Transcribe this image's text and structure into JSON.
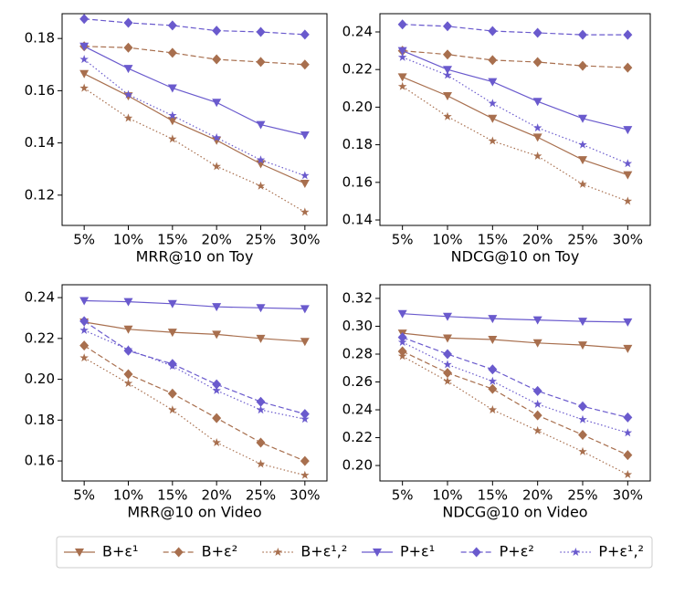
{
  "chart_data": [
    {
      "type": "line",
      "xlabel": "MRR@10 on Toy",
      "categories": [
        "5%",
        "10%",
        "15%",
        "20%",
        "25%",
        "30%"
      ],
      "ylim": [
        0.1084,
        0.1895
      ],
      "yticks": [
        0.12,
        0.14,
        0.16,
        0.18
      ],
      "series": [
        {
          "name": "B+ε¹",
          "color": "#a86f4e",
          "linestyle": "solid",
          "marker": "triangle-down",
          "values": [
            0.1665,
            0.158,
            0.1485,
            0.141,
            0.132,
            0.1245
          ]
        },
        {
          "name": "B+ε²",
          "color": "#a86f4e",
          "linestyle": "dashed",
          "marker": "diamond",
          "values": [
            0.177,
            0.1765,
            0.1745,
            0.172,
            0.171,
            0.17
          ]
        },
        {
          "name": "B+ε¹,²",
          "color": "#a86f4e",
          "linestyle": "dotted",
          "marker": "star",
          "values": [
            0.161,
            0.1495,
            0.1415,
            0.131,
            0.1235,
            0.1135
          ]
        },
        {
          "name": "P+ε¹",
          "color": "#6a5acd",
          "linestyle": "solid",
          "marker": "triangle-down",
          "values": [
            0.177,
            0.1685,
            0.161,
            0.1555,
            0.147,
            0.143
          ]
        },
        {
          "name": "P+ε²",
          "color": "#6a5acd",
          "linestyle": "dashed",
          "marker": "diamond",
          "values": [
            0.1875,
            0.186,
            0.185,
            0.183,
            0.1825,
            0.1815
          ]
        },
        {
          "name": "P+ε¹,²",
          "color": "#6a5acd",
          "linestyle": "dotted",
          "marker": "star",
          "values": [
            0.172,
            0.1585,
            0.1505,
            0.142,
            0.1335,
            0.1275
          ]
        }
      ]
    },
    {
      "type": "line",
      "xlabel": "NDCG@10 on Toy",
      "categories": [
        "5%",
        "10%",
        "15%",
        "20%",
        "25%",
        "30%"
      ],
      "ylim": [
        0.1371,
        0.2497
      ],
      "yticks": [
        0.14,
        0.16,
        0.18,
        {
          "value": 0.2,
          "label": "0.20"
        },
        0.22,
        0.24
      ],
      "series": [
        {
          "name": "B+ε¹",
          "color": "#a86f4e",
          "linestyle": "solid",
          "marker": "triangle-down",
          "values": [
            0.216,
            0.206,
            0.194,
            0.184,
            0.172,
            0.164
          ]
        },
        {
          "name": "B+ε²",
          "color": "#a86f4e",
          "linestyle": "dashed",
          "marker": "diamond",
          "values": [
            0.23,
            0.228,
            0.225,
            0.224,
            0.222,
            0.221
          ]
        },
        {
          "name": "B+ε¹,²",
          "color": "#a86f4e",
          "linestyle": "dotted",
          "marker": "star",
          "values": [
            0.211,
            0.195,
            0.182,
            0.174,
            0.159,
            0.15
          ]
        },
        {
          "name": "P+ε¹",
          "color": "#6a5acd",
          "linestyle": "solid",
          "marker": "triangle-down",
          "values": [
            0.23,
            0.22,
            0.2135,
            0.203,
            0.194,
            0.188
          ]
        },
        {
          "name": "P+ε²",
          "color": "#6a5acd",
          "linestyle": "dashed",
          "marker": "diamond",
          "values": [
            0.244,
            0.243,
            0.2405,
            0.2395,
            0.2385,
            0.2385
          ]
        },
        {
          "name": "P+ε¹,²",
          "color": "#6a5acd",
          "linestyle": "dotted",
          "marker": "star",
          "values": [
            0.2265,
            0.217,
            0.202,
            0.189,
            0.18,
            0.17
          ]
        }
      ]
    },
    {
      "type": "line",
      "xlabel": "MRR@10 on Video",
      "categories": [
        "5%",
        "10%",
        "15%",
        "20%",
        "25%",
        "30%"
      ],
      "ylim": [
        0.1502,
        0.2463
      ],
      "yticks": [
        0.16,
        0.18,
        {
          "value": 0.2,
          "label": "0.20"
        },
        0.22,
        0.24
      ],
      "series": [
        {
          "name": "B+ε¹",
          "color": "#a86f4e",
          "linestyle": "solid",
          "marker": "triangle-down",
          "values": [
            0.228,
            0.2245,
            0.223,
            0.222,
            0.22,
            0.2185
          ]
        },
        {
          "name": "B+ε²",
          "color": "#a86f4e",
          "linestyle": "dashed",
          "marker": "diamond",
          "values": [
            0.2165,
            0.2025,
            0.193,
            0.181,
            0.169,
            0.16
          ]
        },
        {
          "name": "B+ε¹,²",
          "color": "#a86f4e",
          "linestyle": "dotted",
          "marker": "star",
          "values": [
            0.2105,
            0.198,
            0.185,
            0.169,
            0.1585,
            0.153
          ]
        },
        {
          "name": "P+ε¹",
          "color": "#6a5acd",
          "linestyle": "solid",
          "marker": "triangle-down",
          "values": [
            0.2385,
            0.238,
            0.237,
            0.2355,
            0.235,
            0.2345
          ]
        },
        {
          "name": "P+ε²",
          "color": "#6a5acd",
          "linestyle": "dashed",
          "marker": "diamond",
          "values": [
            0.2285,
            0.214,
            0.2075,
            0.1975,
            0.189,
            0.183
          ]
        },
        {
          "name": "P+ε¹,²",
          "color": "#6a5acd",
          "linestyle": "dotted",
          "marker": "star",
          "values": [
            0.224,
            0.2145,
            0.2065,
            0.1945,
            0.185,
            0.1805
          ]
        }
      ]
    },
    {
      "type": "line",
      "xlabel": "NDCG@10 on Video",
      "categories": [
        "5%",
        "10%",
        "15%",
        "20%",
        "25%",
        "30%"
      ],
      "ylim": [
        0.1889,
        0.3298
      ],
      "yticks": [
        {
          "value": 0.2,
          "label": "0.20"
        },
        0.22,
        0.24,
        0.26,
        0.28,
        {
          "value": 0.3,
          "label": "0.30"
        },
        0.32
      ],
      "series": [
        {
          "name": "B+ε¹",
          "color": "#a86f4e",
          "linestyle": "solid",
          "marker": "triangle-down",
          "values": [
            0.295,
            0.2915,
            0.2905,
            0.288,
            0.2865,
            0.284
          ]
        },
        {
          "name": "B+ε²",
          "color": "#a86f4e",
          "linestyle": "dashed",
          "marker": "diamond",
          "values": [
            0.282,
            0.2665,
            0.255,
            0.236,
            0.222,
            0.2075
          ]
        },
        {
          "name": "B+ε¹,²",
          "color": "#a86f4e",
          "linestyle": "dotted",
          "marker": "star",
          "values": [
            0.2785,
            0.2605,
            0.24,
            0.225,
            0.21,
            0.1935
          ]
        },
        {
          "name": "P+ε¹",
          "color": "#6a5acd",
          "linestyle": "solid",
          "marker": "triangle-down",
          "values": [
            0.309,
            0.307,
            0.3055,
            0.3045,
            0.3035,
            0.303
          ]
        },
        {
          "name": "P+ε²",
          "color": "#6a5acd",
          "linestyle": "dashed",
          "marker": "diamond",
          "values": [
            0.292,
            0.28,
            0.269,
            0.2535,
            0.2425,
            0.2345
          ]
        },
        {
          "name": "P+ε¹,²",
          "color": "#6a5acd",
          "linestyle": "dotted",
          "marker": "star",
          "values": [
            0.2885,
            0.2725,
            0.2605,
            0.244,
            0.233,
            0.2235
          ]
        }
      ]
    }
  ]
}
